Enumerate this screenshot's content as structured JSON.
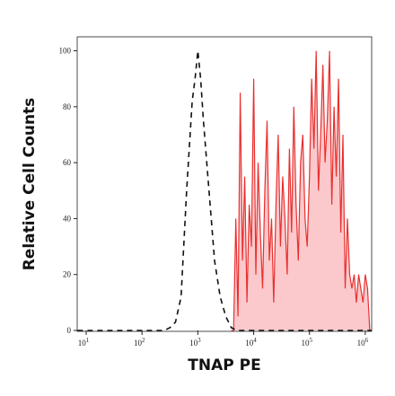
{
  "chart_data": {
    "type": "histogram-overlay",
    "x_label": "TNAP PE",
    "y_label": "Relative Cell Counts",
    "x_scale": "log",
    "xlim": [
      6.9,
      1300000
    ],
    "ylim": [
      0,
      105
    ],
    "xticks": [
      {
        "value": 10,
        "label": "10",
        "exponent": "1"
      },
      {
        "value": 100,
        "label": "10",
        "exponent": "2"
      },
      {
        "value": 1000,
        "label": "10",
        "exponent": "3"
      },
      {
        "value": 10000,
        "label": "10",
        "exponent": "4"
      },
      {
        "value": 100000,
        "label": "10",
        "exponent": "5"
      },
      {
        "value": 1000000,
        "label": "10",
        "exponent": "6"
      }
    ],
    "yticks": [
      0,
      20,
      40,
      60,
      80,
      100
    ],
    "series": [
      {
        "color": "#e8302f",
        "fill": "#fbc9cc",
        "dashed": false,
        "x": [
          3981,
          4365,
          4786,
          5248,
          5754,
          6310,
          6918,
          7586,
          8318,
          9120,
          10000,
          10965,
          12023,
          13183,
          14454,
          15849,
          17378,
          19055,
          20893,
          22909,
          25119,
          27542,
          30200,
          33113,
          36308,
          39811,
          43652,
          47863,
          52481,
          57544,
          63096,
          69183,
          75858,
          83176,
          91201,
          100000,
          109648,
          120226,
          131826,
          144544,
          158489,
          173780,
          190546,
          208930,
          229087,
          251189,
          275423,
          301995,
          331131,
          363078,
          398107,
          436516,
          478630,
          524807,
          575440,
          630957,
          691831,
          758578,
          831764,
          912011,
          1000000,
          1096478,
          1202264
        ],
        "values": [
          0,
          0,
          40,
          5,
          85,
          25,
          55,
          10,
          45,
          30,
          90,
          20,
          60,
          35,
          15,
          50,
          75,
          25,
          40,
          10,
          45,
          70,
          30,
          55,
          40,
          20,
          65,
          35,
          80,
          45,
          25,
          60,
          70,
          40,
          30,
          55,
          90,
          65,
          100,
          50,
          70,
          95,
          60,
          75,
          100,
          45,
          80,
          55,
          90,
          35,
          70,
          15,
          40,
          20,
          15,
          20,
          10,
          20,
          15,
          10,
          20,
          15,
          0
        ]
      },
      {
        "color": "#111111",
        "fill": null,
        "dashed": true,
        "x": [
          7,
          251,
          316,
          398,
          501,
          631,
          794,
          891,
          1000,
          1122,
          1259,
          1585,
          1995,
          2512,
          3162,
          3981,
          5012,
          1300000
        ],
        "values": [
          0,
          0,
          1,
          3,
          12,
          50,
          82,
          90,
          100,
          90,
          75,
          50,
          25,
          12,
          5,
          1,
          0,
          0
        ]
      }
    ]
  }
}
